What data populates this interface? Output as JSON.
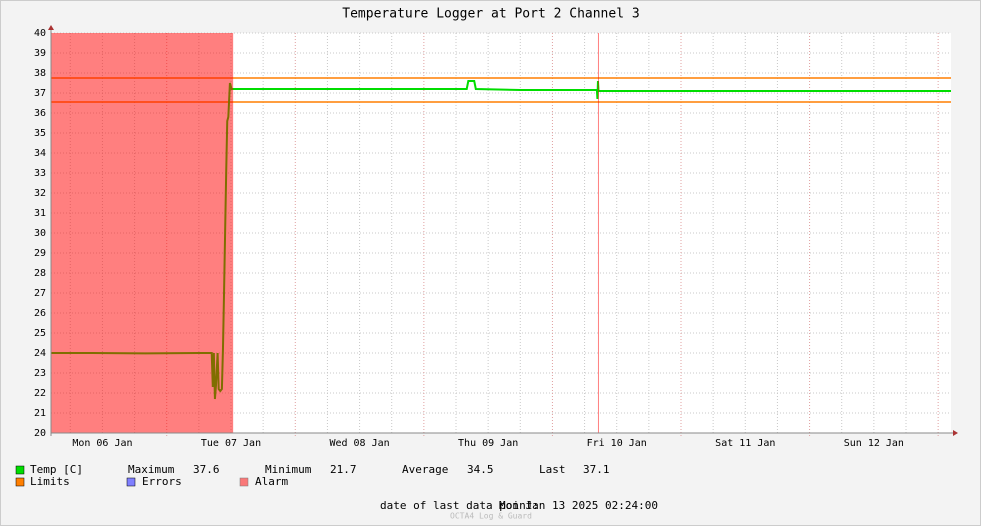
{
  "chart_data": {
    "type": "line",
    "title": "Temperature Logger at Port 2 Channel 3",
    "xlim": [
      2.4,
      170.4
    ],
    "xticks": [
      {
        "value": 12,
        "label": "Mon 06 Jan"
      },
      {
        "value": 36,
        "label": "Tue 07 Jan"
      },
      {
        "value": 60,
        "label": "Wed 08 Jan"
      },
      {
        "value": 84,
        "label": "Thu 09 Jan"
      },
      {
        "value": 108,
        "label": "Fri 10 Jan"
      },
      {
        "value": 132,
        "label": "Sat 11 Jan"
      },
      {
        "value": 156,
        "label": "Sun 12 Jan"
      }
    ],
    "xmajor": [
      24,
      48,
      72,
      96,
      120,
      144,
      168
    ],
    "xminor": [
      6,
      12,
      18,
      30,
      36,
      42,
      54,
      60,
      66,
      78,
      84,
      90,
      102,
      108,
      114,
      126,
      132,
      138,
      150,
      156,
      162
    ],
    "ylim": [
      20,
      40
    ],
    "yticks": [
      20,
      21,
      22,
      23,
      24,
      25,
      26,
      27,
      28,
      29,
      30,
      31,
      32,
      33,
      34,
      35,
      36,
      37,
      38,
      39,
      40
    ],
    "grid": true,
    "series": [
      {
        "name": "Temp [C]",
        "color": "#00dd00",
        "x": [
          2.4,
          10,
          20,
          30,
          32.4,
          32.6,
          32.8,
          33.0,
          33.2,
          33.5,
          33.7,
          34.0,
          34.3,
          34.5,
          34.7,
          34.9,
          35.1,
          35.3,
          35.5,
          35.8,
          36.1,
          50,
          80,
          80.3,
          81.4,
          81.7,
          90,
          104.3,
          104.4,
          104.5,
          104.6,
          120,
          140,
          160,
          170.4
        ],
        "values": [
          24.0,
          24.0,
          23.98,
          24.0,
          24.0,
          22.3,
          24.0,
          21.7,
          22.4,
          24.0,
          22.2,
          22.1,
          22.2,
          24.2,
          27,
          30,
          33,
          35.6,
          35.8,
          37.5,
          37.2,
          37.2,
          37.2,
          37.6,
          37.6,
          37.2,
          37.15,
          37.15,
          36.7,
          37.6,
          37.1,
          37.1,
          37.1,
          37.1,
          37.1
        ]
      }
    ],
    "stats": [
      {
        "label": "Maximum",
        "value": 37.6
      },
      {
        "label": "Minimum",
        "value": 21.7
      },
      {
        "label": "Average",
        "value": 34.5
      },
      {
        "label": "Last",
        "value": 37.1
      }
    ],
    "limits": {
      "name": "Limits",
      "color": "#ff7f00",
      "values": [
        37.75,
        36.55
      ]
    },
    "errors": {
      "name": "Errors",
      "color": "#7f7fff"
    },
    "alarm": {
      "name": "Alarm",
      "color": "#ff0000",
      "spans": [
        [
          2.4,
          36.4
        ],
        [
          104.5,
          104.5
        ]
      ]
    },
    "footer_label": "date of last data point:",
    "footer_value": "Mon Jan 13 2025 02:24:00",
    "credit": "OCTA4 Log & Guard"
  }
}
